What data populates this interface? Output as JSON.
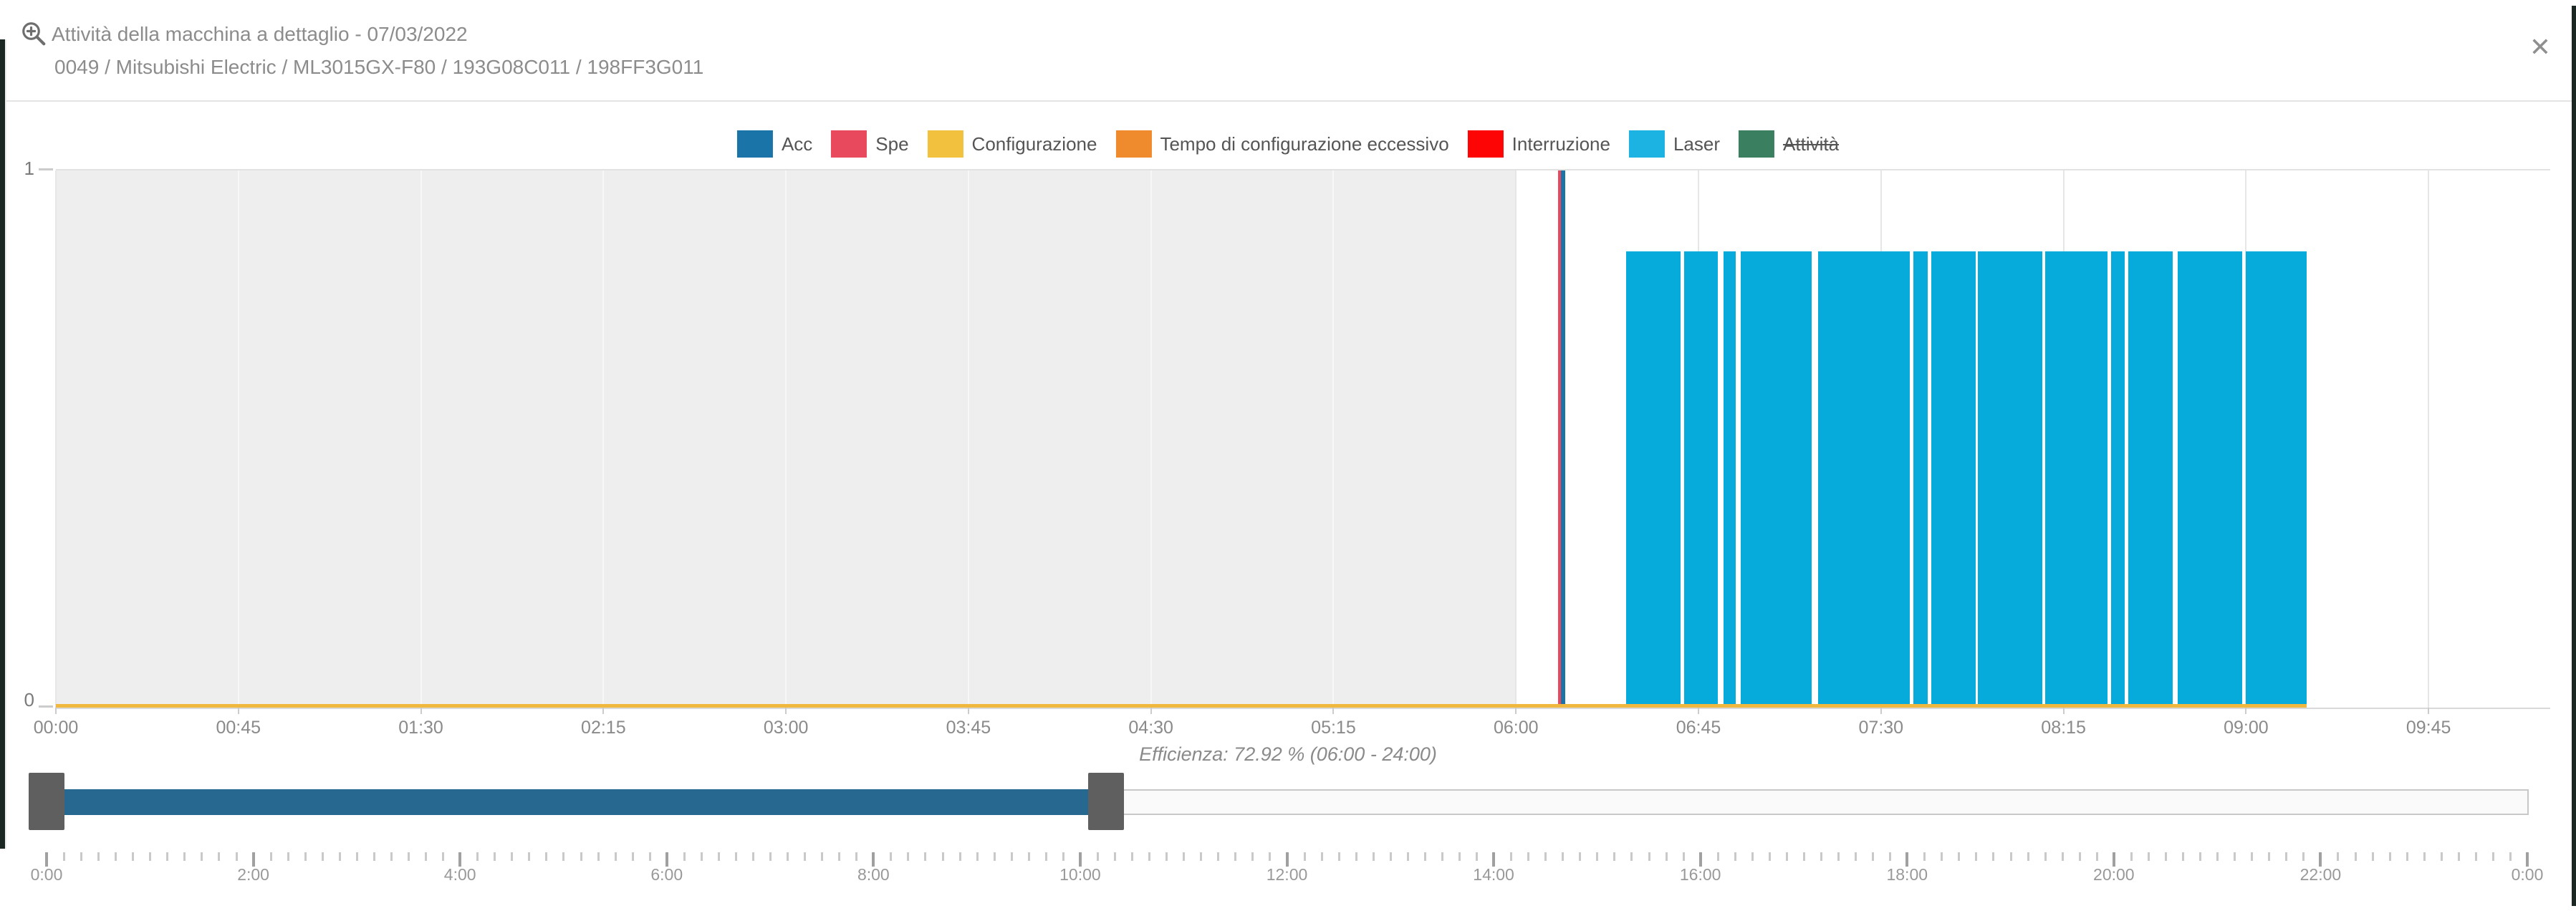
{
  "header": {
    "title": "Attività della macchina a dettaglio - 07/03/2022",
    "subtitle": "0049 / Mitsubishi Electric / ML3015GX-F80 / 193G08C011 / 198FF3G011",
    "close_glyph": "✕"
  },
  "legend": {
    "items": [
      {
        "label": "Acc",
        "color": "#1a74a8",
        "disabled": false
      },
      {
        "label": "Spe",
        "color": "#e8495c",
        "disabled": false
      },
      {
        "label": "Configurazione",
        "color": "#f2c13d",
        "disabled": false
      },
      {
        "label": "Tempo di configurazione eccessivo",
        "color": "#ef8b2c",
        "disabled": false
      },
      {
        "label": "Interruzione",
        "color": "#fe0505",
        "disabled": false
      },
      {
        "label": "Laser",
        "color": "#1cb2e2",
        "disabled": false
      },
      {
        "label": "Attività",
        "color": "#3a8060",
        "disabled": true
      }
    ]
  },
  "chart_data": {
    "type": "bar",
    "title": "Attività della macchina a dettaglio - 07/03/2022",
    "xlabel": "",
    "ylabel": "",
    "ylim": [
      0,
      1
    ],
    "y_tick_labels": {
      "top": "1",
      "bottom": "0"
    },
    "x_range_minutes": [
      0,
      615
    ],
    "x_tick_step_minutes": 45,
    "x_tick_labels": [
      "00:00",
      "00:45",
      "01:30",
      "02:15",
      "03:00",
      "03:45",
      "04:30",
      "05:15",
      "06:00",
      "06:45",
      "07:30",
      "08:15",
      "09:00",
      "09:45"
    ],
    "grid": true,
    "legend_position": "top",
    "no_data_band": {
      "start": "00:00",
      "end": "06:00",
      "start_min": 0,
      "end_min": 360,
      "color": "#eeeeee"
    },
    "series": [
      {
        "name": "Configurazione",
        "color": "#f0b83e",
        "render": "baseline-line",
        "value": 0.006,
        "intervals": [
          {
            "start": "00:00",
            "end": "09:15",
            "start_min": 0,
            "end_min": 554.9
          }
        ]
      },
      {
        "name": "Spe",
        "color": "#e8495c",
        "render": "bar",
        "height_fraction": 1,
        "intervals": [
          {
            "start": "06:10",
            "end": "06:11",
            "start_min": 370.3,
            "end_min": 371.0
          }
        ]
      },
      {
        "name": "Acc",
        "color": "#1a74a8",
        "render": "bar",
        "height_fraction": 1,
        "intervals": [
          {
            "start": "06:11",
            "end": "06:12",
            "start_min": 371.0,
            "end_min": 372.2
          }
        ]
      },
      {
        "name": "Laser",
        "color": "#06abdc",
        "render": "bar",
        "height_fraction": 0.85,
        "intervals": [
          {
            "start": "06:27",
            "end": "06:41",
            "start_min": 387.1,
            "end_min": 400.6
          },
          {
            "start": "06:41",
            "end": "06:50",
            "start_min": 401.4,
            "end_min": 409.7
          },
          {
            "start": "06:51",
            "end": "06:54",
            "start_min": 411.1,
            "end_min": 414.1
          },
          {
            "start": "06:55",
            "end": "07:13",
            "start_min": 415.4,
            "end_min": 432.9
          },
          {
            "start": "07:14",
            "end": "07:37",
            "start_min": 434.5,
            "end_min": 457.1
          },
          {
            "start": "07:38",
            "end": "07:41",
            "start_min": 458.0,
            "end_min": 461.5
          },
          {
            "start": "07:42",
            "end": "07:53",
            "start_min": 462.4,
            "end_min": 473.3
          },
          {
            "start": "07:54",
            "end": "08:10",
            "start_min": 473.9,
            "end_min": 489.8
          },
          {
            "start": "08:10",
            "end": "08:26",
            "start_min": 490.5,
            "end_min": 505.9
          },
          {
            "start": "08:27",
            "end": "08:30",
            "start_min": 506.8,
            "end_min": 510.0
          },
          {
            "start": "08:31",
            "end": "08:42",
            "start_min": 511.0,
            "end_min": 522.0
          },
          {
            "start": "08:43",
            "end": "08:59",
            "start_min": 523.1,
            "end_min": 539.0
          },
          {
            "start": "09:00",
            "end": "09:15",
            "start_min": 539.9,
            "end_min": 554.9
          }
        ]
      }
    ],
    "annotation": "Efficienza: 72.92 % (06:00 - 24:00)"
  },
  "efficiency_label": "Efficienza: 72.92 % (06:00 - 24:00)",
  "slider": {
    "total_minutes": 1440,
    "selection": {
      "start": "0:00",
      "end": "10:15",
      "start_min": 0,
      "end_min": 615
    },
    "selection_color": "#26688f",
    "handle_color": "#5f5f5f",
    "ruler": {
      "minor_step_minutes": 10,
      "major_step_minutes": 120,
      "major_labels": [
        "0:00",
        "2:00",
        "4:00",
        "6:00",
        "8:00",
        "10:00",
        "12:00",
        "14:00",
        "16:00",
        "18:00",
        "20:00",
        "22:00",
        "0:00"
      ]
    }
  }
}
